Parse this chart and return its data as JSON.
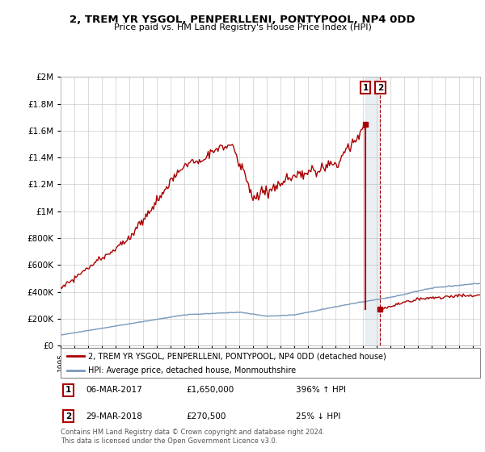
{
  "title": "2, TREM YR YSGOL, PENPERLLENI, PONTYPOOL, NP4 0DD",
  "subtitle": "Price paid vs. HM Land Registry's House Price Index (HPI)",
  "hpi_label": "HPI: Average price, detached house, Monmouthshire",
  "property_label": "2, TREM YR YSGOL, PENPERLLENI, PONTYPOOL, NP4 0DD (detached house)",
  "sale1_date": "06-MAR-2017",
  "sale1_price": 1650000,
  "sale1_hpi_text": "396% ↑ HPI",
  "sale2_date": "29-MAR-2018",
  "sale2_price": 270500,
  "sale2_hpi_text": "25% ↓ HPI",
  "footer": "Contains HM Land Registry data © Crown copyright and database right 2024.\nThis data is licensed under the Open Government Licence v3.0.",
  "hpi_color": "#7799bb",
  "property_color": "#aa0000",
  "sale1_year": 2017.17,
  "sale2_year": 2018.24,
  "ylim": [
    0,
    2000000
  ],
  "yticks": [
    0,
    200000,
    400000,
    600000,
    800000,
    1000000,
    1200000,
    1400000,
    1600000,
    1800000,
    2000000
  ],
  "xlim_start": 1995,
  "xlim_end": 2025.5
}
